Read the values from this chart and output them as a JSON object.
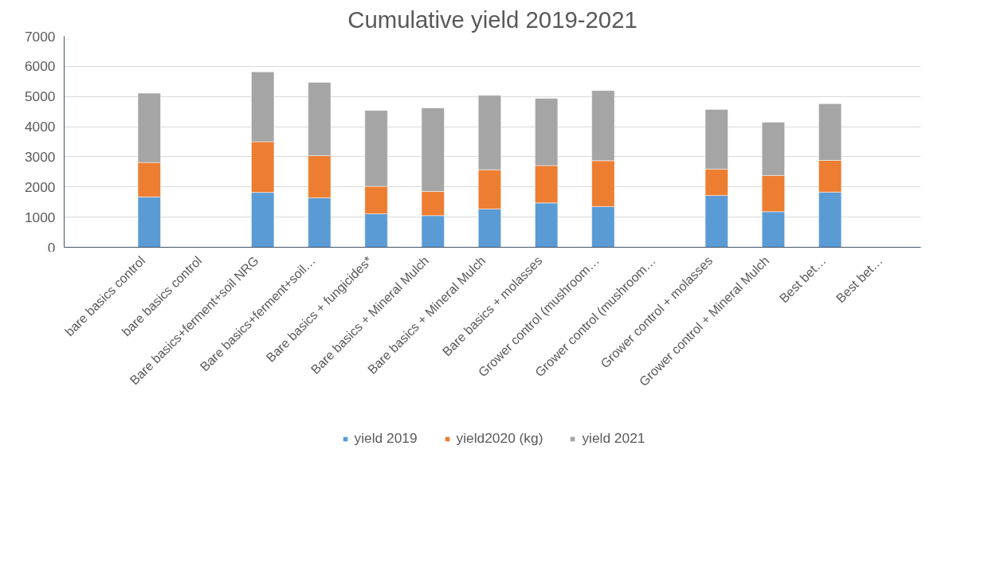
{
  "chart_data": {
    "type": "bar",
    "title": "Cumulative yield 2019-2021",
    "stacked": true,
    "categories": [
      "bare basics control",
      "bare basics control",
      "Bare basics+ferment+soil NRG",
      "Bare basics+ferment+soil…",
      "Bare basics + fungicides*",
      "Bare basics + Mineral Mulch",
      "Bare basics + Mineral Mulch",
      "Bare basics + molasses",
      "Grower control (mushroom…",
      "Grower control (mushroom…",
      "Grower control + molasses",
      "Grower control + Mineral Mulch",
      "Best bet…",
      "Best bet…"
    ],
    "series": [
      {
        "name": "yield 2019",
        "color": "#5b9bd5",
        "values": [
          1670,
          null,
          1820,
          1640,
          1110,
          1050,
          1270,
          1470,
          1350,
          null,
          1720,
          1180,
          1830,
          null
        ]
      },
      {
        "name": "yield2020 (kg)",
        "color": "#ed7d31",
        "values": [
          1140,
          null,
          1680,
          1400,
          910,
          800,
          1300,
          1240,
          1520,
          null,
          870,
          1200,
          1050,
          null
        ]
      },
      {
        "name": "yield 2021",
        "color": "#a5a5a5",
        "values": [
          2300,
          null,
          2320,
          2430,
          2520,
          2770,
          2470,
          2230,
          2330,
          null,
          1980,
          1770,
          1880,
          null
        ]
      }
    ],
    "ylim": [
      0,
      7000
    ],
    "yticks": [
      0,
      1000,
      2000,
      3000,
      4000,
      5000,
      6000,
      7000
    ],
    "grid": "y",
    "legend": "bottom"
  }
}
